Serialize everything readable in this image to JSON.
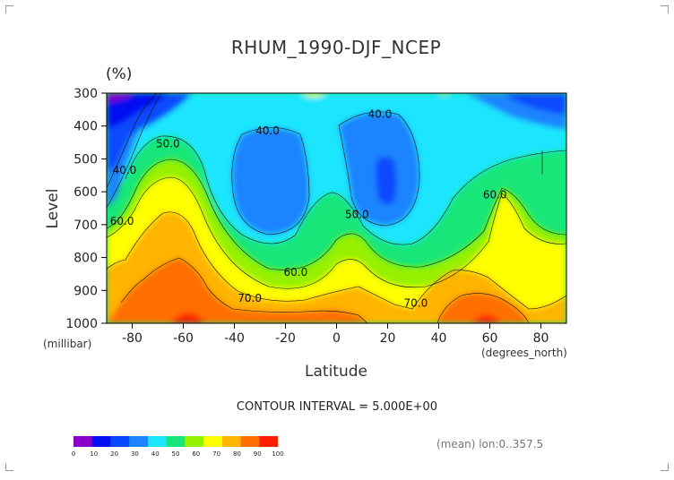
{
  "chart_data": {
    "type": "contour",
    "title": "RHUM_1990-DJF_NCEP",
    "units_label": "(%)",
    "ylabel": "Level",
    "y_units": "(millibar)",
    "xlabel": "Latitude",
    "x_units": "(degrees_north)",
    "xlim": [
      -90,
      90
    ],
    "ylim": [
      1000,
      300
    ],
    "x_ticks": [
      "-80",
      "-60",
      "-40",
      "-20",
      "0",
      "20",
      "40",
      "60",
      "80"
    ],
    "x_tick_values": [
      -80,
      -60,
      -40,
      -20,
      0,
      20,
      40,
      60,
      80
    ],
    "y_ticks": [
      "300",
      "400",
      "500",
      "600",
      "700",
      "800",
      "900",
      "1000"
    ],
    "y_tick_values": [
      300,
      400,
      500,
      600,
      700,
      800,
      900,
      1000
    ],
    "contour_interval": "CONTOUR INTERVAL = 5.000E+00",
    "footnote": "(mean) lon:0..357.5",
    "contour_labels": [
      {
        "text": "40.0",
        "lat": -27,
        "lev": 425
      },
      {
        "text": "40.0",
        "lat": 17,
        "lev": 375
      },
      {
        "text": "50.0",
        "lat": -66,
        "lev": 465
      },
      {
        "text": "40.0",
        "lat": -83,
        "lev": 545
      },
      {
        "text": "60.0",
        "lat": -84,
        "lev": 700
      },
      {
        "text": "50.0",
        "lat": 8,
        "lev": 680
      },
      {
        "text": "60.0",
        "lat": -16,
        "lev": 855
      },
      {
        "text": "70.0",
        "lat": -34,
        "lev": 935
      },
      {
        "text": "60.0",
        "lat": 62,
        "lev": 620
      },
      {
        "text": "70.0",
        "lat": 31,
        "lev": 950
      }
    ],
    "colorbar": {
      "ticks": [
        "0",
        "10",
        "20",
        "30",
        "40",
        "50",
        "60",
        "70",
        "80",
        "90",
        "100"
      ],
      "colors": [
        "#8a00c6",
        "#0010f0",
        "#0a48ff",
        "#1c84ff",
        "#1ce6ff",
        "#18e678",
        "#96f000",
        "#ffff00",
        "#ffb400",
        "#ff6e00",
        "#ff1e00"
      ]
    }
  }
}
